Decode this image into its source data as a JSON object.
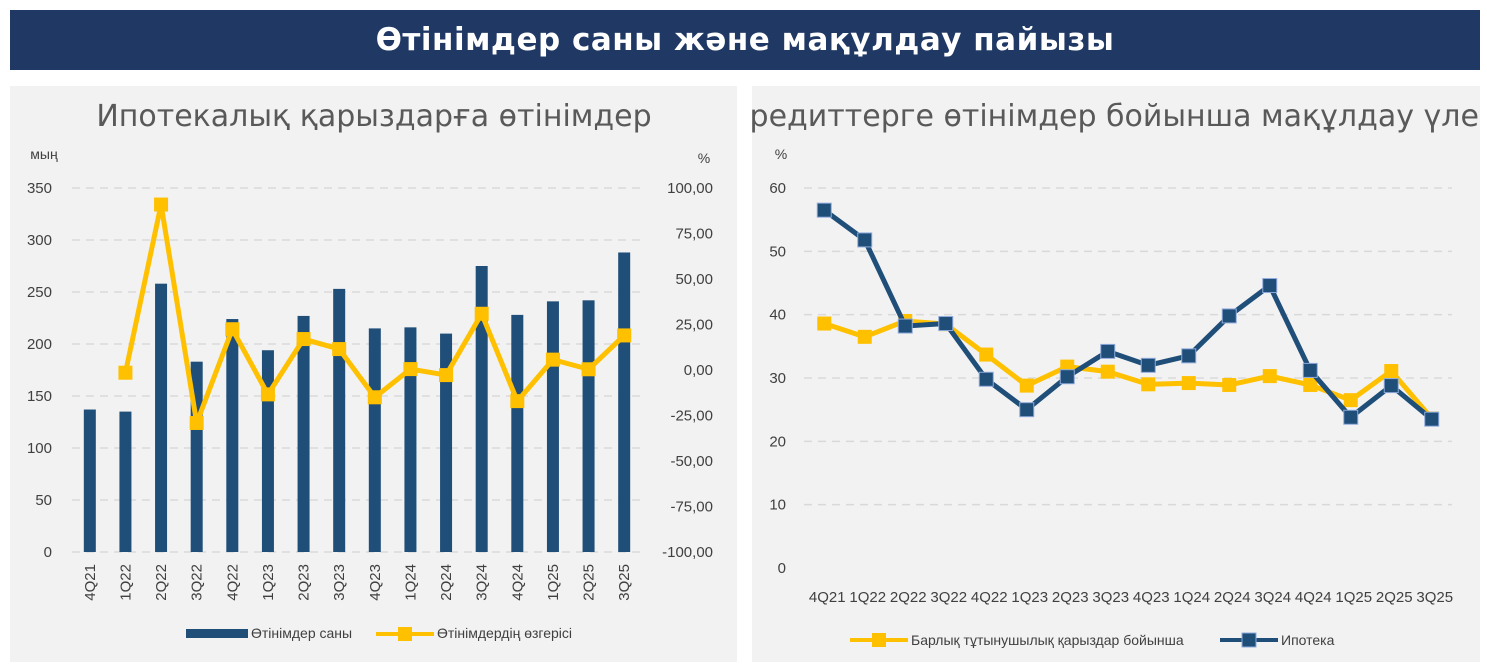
{
  "header": {
    "title": "Өтінімдер саны және мақұлдау пайызы"
  },
  "colors": {
    "banner": "#1f3864",
    "bar": "#1f4e79",
    "gold": "#ffc000",
    "navy": "#1f4e79",
    "panel": "#f2f2f2"
  },
  "chart_data": [
    {
      "type": "bar",
      "title": "Ипотекалық қарыздарға өтінімдер",
      "left_unit": "мың",
      "right_unit": "%",
      "categories": [
        "4Q21",
        "1Q22",
        "2Q22",
        "3Q22",
        "4Q22",
        "1Q23",
        "2Q23",
        "3Q23",
        "4Q23",
        "1Q24",
        "2Q24",
        "3Q24",
        "4Q24",
        "1Q25",
        "2Q25",
        "3Q25"
      ],
      "series": [
        {
          "name": "Өтінімдер саны",
          "type": "bar",
          "axis": "left",
          "values": [
            137,
            135,
            258,
            183,
            224,
            194,
            227,
            253,
            215,
            216,
            210,
            275,
            228,
            241,
            242,
            288
          ]
        },
        {
          "name": "Өтінімдердің өзгерісі",
          "type": "line",
          "axis": "right",
          "values": [
            null,
            -1.5,
            90.9,
            -29.1,
            22.4,
            -13.4,
            17.0,
            11.5,
            -15.0,
            0.5,
            -2.8,
            30.9,
            -17.1,
            5.7,
            0.4,
            19.0
          ]
        }
      ],
      "ylim_left": [
        0,
        350
      ],
      "yticks_left": [
        "0",
        "50",
        "100",
        "150",
        "200",
        "250",
        "300",
        "350"
      ],
      "ylim_right": [
        -100,
        100
      ],
      "yticks_right": [
        "-100,00",
        "-75,00",
        "-50,00",
        "-25,00",
        "0,00",
        "25,00",
        "50,00",
        "75,00",
        "100,00"
      ],
      "legend_position": "bottom",
      "grid": true
    },
    {
      "type": "line",
      "title": "Кредиттерге өтінімдер бойынша мақұлдау үлесі",
      "left_unit": "%",
      "categories": [
        "4Q21",
        "1Q22",
        "2Q22",
        "3Q22",
        "4Q22",
        "1Q23",
        "2Q23",
        "3Q23",
        "4Q23",
        "1Q24",
        "2Q24",
        "3Q24",
        "4Q24",
        "1Q25",
        "2Q25",
        "3Q25"
      ],
      "series": [
        {
          "name": "Барлық тұтынушылық қарыздар бойынша",
          "values": [
            38.6,
            36.5,
            39.0,
            38.5,
            33.7,
            28.8,
            31.8,
            31.0,
            29.0,
            29.2,
            28.9,
            30.3,
            28.9,
            26.5,
            31.1,
            23.6
          ]
        },
        {
          "name": "Ипотека",
          "values": [
            56.5,
            51.8,
            38.2,
            38.6,
            29.8,
            25.0,
            30.2,
            34.2,
            32.0,
            33.5,
            39.8,
            44.6,
            31.2,
            23.8,
            28.8,
            23.5
          ]
        }
      ],
      "ylim": [
        0,
        60
      ],
      "yticks": [
        "0",
        "10",
        "20",
        "30",
        "40",
        "50",
        "60"
      ],
      "legend_position": "bottom",
      "grid": true
    }
  ]
}
